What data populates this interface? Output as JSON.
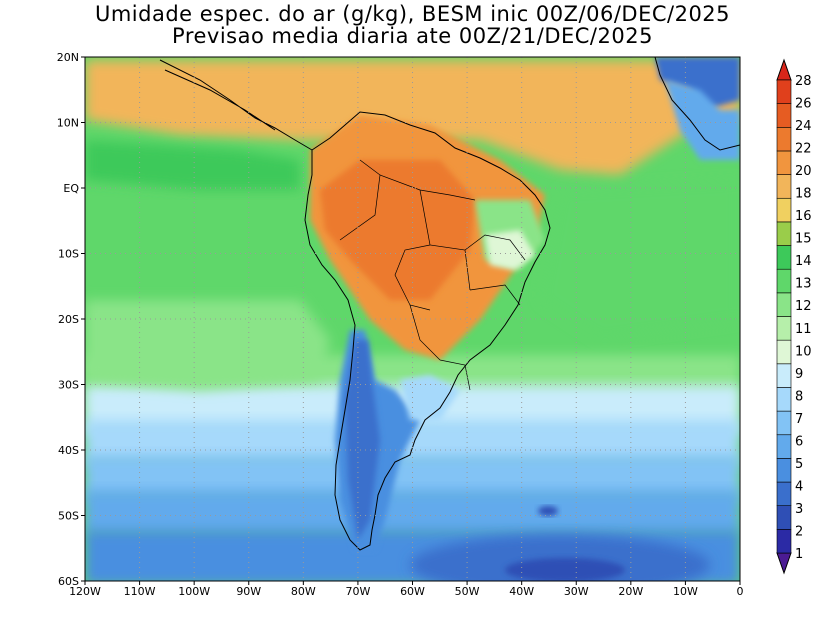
{
  "title": {
    "line1": "Umidade espec. do ar (g/kg), BESM inic 00Z/06/DEC/2025",
    "line2": "Previsao media diaria ate 00Z/21/DEC/2025"
  },
  "map": {
    "lon_range": [
      -120,
      0
    ],
    "lat_range": [
      -60,
      20
    ],
    "lon_ticks": [
      "120W",
      "110W",
      "100W",
      "90W",
      "80W",
      "70W",
      "60W",
      "50W",
      "40W",
      "30W",
      "20W",
      "10W",
      "0"
    ],
    "lat_ticks": [
      "20N",
      "10N",
      "EQ",
      "10S",
      "20S",
      "30S",
      "40S",
      "50S",
      "60S"
    ],
    "grid": "dotted"
  },
  "colorbar": {
    "labels": [
      "1",
      "2",
      "3",
      "4",
      "5",
      "6",
      "7",
      "8",
      "9",
      "10",
      "11",
      "12",
      "13",
      "14",
      "15",
      "16",
      "18",
      "20",
      "22",
      "24",
      "26",
      "28"
    ],
    "colors": [
      "#4b1b93",
      "#2b2aa5",
      "#2f4fb5",
      "#3a6fcc",
      "#4a8fe0",
      "#62aaec",
      "#82c3f5",
      "#a6d9fb",
      "#c9ecfb",
      "#dff7d6",
      "#b6efaa",
      "#8ae488",
      "#5fd76a",
      "#3dc95a",
      "#9acd4a",
      "#f0d060",
      "#f2b55a",
      "#f1953e",
      "#ec7a2e",
      "#e65c22",
      "#e0401c",
      "#d9261a"
    ]
  }
}
